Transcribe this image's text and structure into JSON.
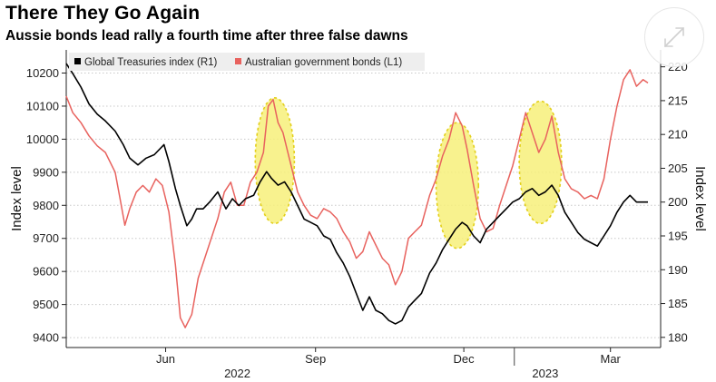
{
  "title": "There They Go Again",
  "subtitle": "Aussie bonds lead rally a fourth time after three false dawns",
  "expand_button_icon": "expand-arrows-icon",
  "chart_data": {
    "type": "line",
    "x_range": [
      "2022-04-01",
      "2023-03-24"
    ],
    "x_ticks": [
      {
        "date": "2022-06-01",
        "label": "Jun"
      },
      {
        "date": "2022-09-01",
        "label": "Sep"
      },
      {
        "date": "2022-12-01",
        "label": "Dec"
      },
      {
        "date": "2023-03-01",
        "label": "Mar"
      }
    ],
    "x_year_labels": [
      {
        "date": "2022-07-15",
        "label": "2022"
      },
      {
        "date": "2023-01-20",
        "label": "2023"
      }
    ],
    "x_separators": [
      "2022-01-01",
      "2023-01-01"
    ],
    "y_left": {
      "label": "Index level",
      "range": [
        9370,
        10270
      ],
      "ticks": [
        9400,
        9500,
        9600,
        9700,
        9800,
        9900,
        10000,
        10100,
        10200
      ]
    },
    "y_right": {
      "label": "Index level",
      "range": [
        178.5,
        222.5
      ],
      "ticks": [
        180,
        185,
        190,
        195,
        200,
        205,
        210,
        215,
        220
      ]
    },
    "series": [
      {
        "name": "Global Treasuries index (R1)",
        "axis": "right",
        "color": "#000000",
        "points": [
          [
            "2022-04-01",
            220.5
          ],
          [
            "2022-04-05",
            219
          ],
          [
            "2022-04-10",
            217
          ],
          [
            "2022-04-15",
            214.5
          ],
          [
            "2022-04-20",
            213
          ],
          [
            "2022-04-25",
            212
          ],
          [
            "2022-05-01",
            210.5
          ],
          [
            "2022-05-06",
            208.5
          ],
          [
            "2022-05-10",
            206.5
          ],
          [
            "2022-05-15",
            205.5
          ],
          [
            "2022-05-20",
            206.5
          ],
          [
            "2022-05-25",
            207
          ],
          [
            "2022-05-31",
            208.5
          ],
          [
            "2022-06-03",
            206
          ],
          [
            "2022-06-07",
            202
          ],
          [
            "2022-06-10",
            199.5
          ],
          [
            "2022-06-14",
            196.5
          ],
          [
            "2022-06-17",
            197.5
          ],
          [
            "2022-06-20",
            199
          ],
          [
            "2022-06-24",
            199
          ],
          [
            "2022-06-28",
            200
          ],
          [
            "2022-07-03",
            201.5
          ],
          [
            "2022-07-08",
            199
          ],
          [
            "2022-07-12",
            200.5
          ],
          [
            "2022-07-16",
            199.5
          ],
          [
            "2022-07-20",
            200.5
          ],
          [
            "2022-07-25",
            201
          ],
          [
            "2022-07-29",
            203
          ],
          [
            "2022-08-02",
            204.5
          ],
          [
            "2022-08-05",
            203.5
          ],
          [
            "2022-08-09",
            202.5
          ],
          [
            "2022-08-13",
            203
          ],
          [
            "2022-08-17",
            201.5
          ],
          [
            "2022-08-21",
            199.5
          ],
          [
            "2022-08-25",
            197.5
          ],
          [
            "2022-08-29",
            197
          ],
          [
            "2022-09-02",
            196.5
          ],
          [
            "2022-09-06",
            195
          ],
          [
            "2022-09-10",
            194.5
          ],
          [
            "2022-09-14",
            192.5
          ],
          [
            "2022-09-18",
            191
          ],
          [
            "2022-09-22",
            189
          ],
          [
            "2022-09-26",
            186.5
          ],
          [
            "2022-09-30",
            184
          ],
          [
            "2022-10-04",
            186
          ],
          [
            "2022-10-08",
            184
          ],
          [
            "2022-10-12",
            183.5
          ],
          [
            "2022-10-16",
            182.5
          ],
          [
            "2022-10-20",
            182
          ],
          [
            "2022-10-24",
            182.5
          ],
          [
            "2022-10-28",
            184.5
          ],
          [
            "2022-11-01",
            185.5
          ],
          [
            "2022-11-05",
            186.5
          ],
          [
            "2022-11-10",
            189.5
          ],
          [
            "2022-11-14",
            191
          ],
          [
            "2022-11-18",
            193
          ],
          [
            "2022-11-22",
            194.5
          ],
          [
            "2022-11-26",
            196
          ],
          [
            "2022-11-30",
            197
          ],
          [
            "2022-12-03",
            196.5
          ],
          [
            "2022-12-07",
            195
          ],
          [
            "2022-12-11",
            194
          ],
          [
            "2022-12-15",
            196
          ],
          [
            "2022-12-19",
            197
          ],
          [
            "2022-12-23",
            198
          ],
          [
            "2022-12-27",
            199
          ],
          [
            "2022-12-31",
            200
          ],
          [
            "2023-01-04",
            200.5
          ],
          [
            "2023-01-08",
            201.5
          ],
          [
            "2023-01-12",
            202
          ],
          [
            "2023-01-16",
            201
          ],
          [
            "2023-01-20",
            201.5
          ],
          [
            "2023-01-24",
            202.5
          ],
          [
            "2023-01-28",
            201
          ],
          [
            "2023-02-01",
            198.5
          ],
          [
            "2023-02-05",
            197
          ],
          [
            "2023-02-09",
            195.5
          ],
          [
            "2023-02-13",
            194.5
          ],
          [
            "2023-02-17",
            194
          ],
          [
            "2023-02-21",
            193.5
          ],
          [
            "2023-02-25",
            195
          ],
          [
            "2023-03-01",
            196.5
          ],
          [
            "2023-03-05",
            198.5
          ],
          [
            "2023-03-09",
            200
          ],
          [
            "2023-03-13",
            201
          ],
          [
            "2023-03-17",
            200
          ],
          [
            "2023-03-21",
            200
          ],
          [
            "2023-03-24",
            200
          ]
        ]
      },
      {
        "name": "Australian government bonds (L1)",
        "axis": "left",
        "color": "#e8625e",
        "points": [
          [
            "2022-04-01",
            10130
          ],
          [
            "2022-04-05",
            10080
          ],
          [
            "2022-04-10",
            10050
          ],
          [
            "2022-04-15",
            10010
          ],
          [
            "2022-04-20",
            9980
          ],
          [
            "2022-04-25",
            9960
          ],
          [
            "2022-05-01",
            9900
          ],
          [
            "2022-05-04",
            9820
          ],
          [
            "2022-05-07",
            9740
          ],
          [
            "2022-05-10",
            9790
          ],
          [
            "2022-05-14",
            9840
          ],
          [
            "2022-05-18",
            9860
          ],
          [
            "2022-05-22",
            9840
          ],
          [
            "2022-05-26",
            9880
          ],
          [
            "2022-05-30",
            9860
          ],
          [
            "2022-06-03",
            9780
          ],
          [
            "2022-06-07",
            9620
          ],
          [
            "2022-06-10",
            9460
          ],
          [
            "2022-06-13",
            9430
          ],
          [
            "2022-06-17",
            9470
          ],
          [
            "2022-06-21",
            9580
          ],
          [
            "2022-06-25",
            9640
          ],
          [
            "2022-06-29",
            9700
          ],
          [
            "2022-07-03",
            9760
          ],
          [
            "2022-07-07",
            9840
          ],
          [
            "2022-07-11",
            9870
          ],
          [
            "2022-07-15",
            9800
          ],
          [
            "2022-07-19",
            9800
          ],
          [
            "2022-07-23",
            9870
          ],
          [
            "2022-07-27",
            9900
          ],
          [
            "2022-07-31",
            9960
          ],
          [
            "2022-08-03",
            10100
          ],
          [
            "2022-08-06",
            10120
          ],
          [
            "2022-08-09",
            10050
          ],
          [
            "2022-08-12",
            10020
          ],
          [
            "2022-08-15",
            9960
          ],
          [
            "2022-08-18",
            9900
          ],
          [
            "2022-08-21",
            9840
          ],
          [
            "2022-08-25",
            9800
          ],
          [
            "2022-08-29",
            9770
          ],
          [
            "2022-09-02",
            9760
          ],
          [
            "2022-09-06",
            9790
          ],
          [
            "2022-09-10",
            9780
          ],
          [
            "2022-09-14",
            9760
          ],
          [
            "2022-09-18",
            9720
          ],
          [
            "2022-09-22",
            9690
          ],
          [
            "2022-09-26",
            9640
          ],
          [
            "2022-09-30",
            9660
          ],
          [
            "2022-10-04",
            9720
          ],
          [
            "2022-10-08",
            9680
          ],
          [
            "2022-10-12",
            9640
          ],
          [
            "2022-10-16",
            9620
          ],
          [
            "2022-10-20",
            9560
          ],
          [
            "2022-10-24",
            9600
          ],
          [
            "2022-10-28",
            9700
          ],
          [
            "2022-11-01",
            9720
          ],
          [
            "2022-11-05",
            9740
          ],
          [
            "2022-11-10",
            9830
          ],
          [
            "2022-11-14",
            9880
          ],
          [
            "2022-11-18",
            9950
          ],
          [
            "2022-11-22",
            10000
          ],
          [
            "2022-11-26",
            10080
          ],
          [
            "2022-11-30",
            10040
          ],
          [
            "2022-12-03",
            9970
          ],
          [
            "2022-12-07",
            9860
          ],
          [
            "2022-12-11",
            9760
          ],
          [
            "2022-12-15",
            9720
          ],
          [
            "2022-12-19",
            9730
          ],
          [
            "2022-12-23",
            9800
          ],
          [
            "2022-12-27",
            9860
          ],
          [
            "2022-12-31",
            9920
          ],
          [
            "2023-01-04",
            10000
          ],
          [
            "2023-01-08",
            10080
          ],
          [
            "2023-01-12",
            10020
          ],
          [
            "2023-01-16",
            9960
          ],
          [
            "2023-01-20",
            10000
          ],
          [
            "2023-01-24",
            10070
          ],
          [
            "2023-01-28",
            9960
          ],
          [
            "2023-02-01",
            9880
          ],
          [
            "2023-02-05",
            9850
          ],
          [
            "2023-02-09",
            9840
          ],
          [
            "2023-02-13",
            9820
          ],
          [
            "2023-02-17",
            9830
          ],
          [
            "2023-02-21",
            9820
          ],
          [
            "2023-02-25",
            9880
          ],
          [
            "2023-03-01",
            10000
          ],
          [
            "2023-03-05",
            10100
          ],
          [
            "2023-03-09",
            10180
          ],
          [
            "2023-03-13",
            10210
          ],
          [
            "2023-03-17",
            10160
          ],
          [
            "2023-03-21",
            10180
          ],
          [
            "2023-03-24",
            10170
          ]
        ]
      }
    ],
    "highlights": [
      {
        "center": "2022-08-07",
        "left_value": 9935,
        "half_width_days": 12,
        "half_height": 190
      },
      {
        "center": "2022-11-27",
        "left_value": 9860,
        "half_width_days": 13,
        "half_height": 190
      },
      {
        "center": "2023-01-17",
        "left_value": 9930,
        "half_width_days": 13,
        "half_height": 185
      }
    ],
    "highlight_color": "#f7f07a",
    "grid": true,
    "legend": "top-left"
  }
}
